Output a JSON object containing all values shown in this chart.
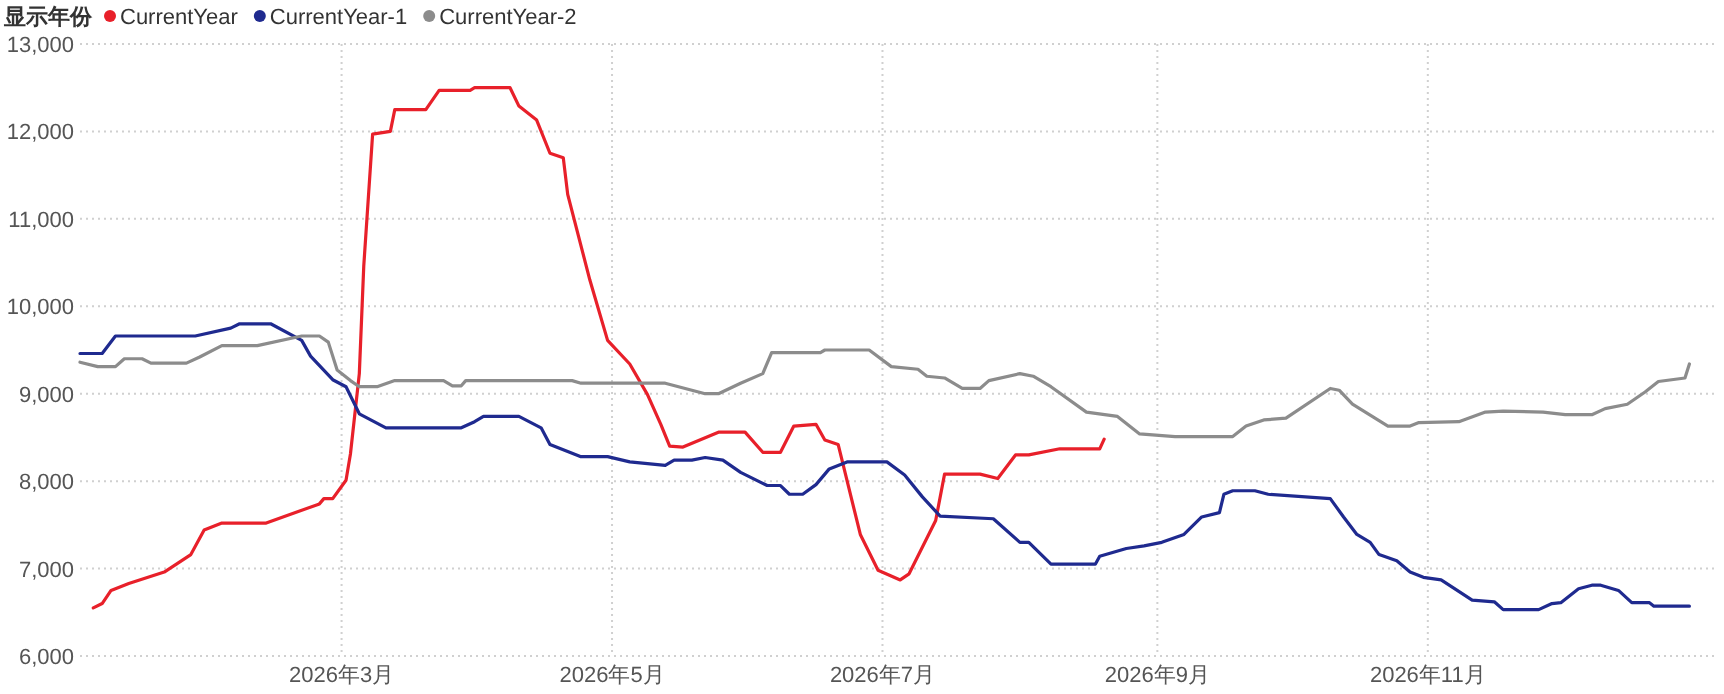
{
  "chart_data": {
    "type": "line",
    "legend_title": "显示年份",
    "legend": "top left",
    "grid": true,
    "xlim": [
      "2026-01-01",
      "2027-01-05"
    ],
    "xticks": [
      {
        "value": "2026-03-01",
        "label": "2026年3月"
      },
      {
        "value": "2026-05-01",
        "label": "2026年5月"
      },
      {
        "value": "2026-07-01",
        "label": "2026年7月"
      },
      {
        "value": "2026-09-01",
        "label": "2026年9月"
      },
      {
        "value": "2026-11-01",
        "label": "2026年11月"
      }
    ],
    "ylim": [
      6000,
      13000
    ],
    "yticks": [
      {
        "value": 6000,
        "label": "6,000"
      },
      {
        "value": 7000,
        "label": "7,000"
      },
      {
        "value": 8000,
        "label": "8,000"
      },
      {
        "value": 9000,
        "label": "9,000"
      },
      {
        "value": 10000,
        "label": "10,000"
      },
      {
        "value": 11000,
        "label": "11,000"
      },
      {
        "value": 12000,
        "label": "12,000"
      },
      {
        "value": 13000,
        "label": "13,000"
      }
    ],
    "series": [
      {
        "name": "CurrentYear",
        "color": "#e8202a",
        "x": [
          "2026-01-04",
          "2026-01-06",
          "2026-01-08",
          "2026-01-12",
          "2026-01-20",
          "2026-01-26",
          "2026-01-29",
          "2026-02-02",
          "2026-02-12",
          "2026-02-24",
          "2026-02-25",
          "2026-02-27",
          "2026-03-02",
          "2026-03-03",
          "2026-03-05",
          "2026-03-06",
          "2026-03-08",
          "2026-03-12",
          "2026-03-13",
          "2026-03-20",
          "2026-03-23",
          "2026-03-30",
          "2026-03-31",
          "2026-04-08",
          "2026-04-10",
          "2026-04-14",
          "2026-04-17",
          "2026-04-20",
          "2026-04-21",
          "2026-04-26",
          "2026-04-30",
          "2026-05-05",
          "2026-05-09",
          "2026-05-12",
          "2026-05-14",
          "2026-05-17",
          "2026-05-25",
          "2026-05-31",
          "2026-06-04",
          "2026-06-08",
          "2026-06-11",
          "2026-06-16",
          "2026-06-18",
          "2026-06-21",
          "2026-06-26",
          "2026-06-30",
          "2026-07-05",
          "2026-07-07",
          "2026-07-13",
          "2026-07-15",
          "2026-07-23",
          "2026-07-27",
          "2026-07-31",
          "2026-08-03",
          "2026-08-10",
          "2026-08-19",
          "2026-08-20"
        ],
        "values": [
          6550,
          6600,
          6750,
          6830,
          6960,
          7160,
          7440,
          7520,
          7520,
          7740,
          7800,
          7800,
          8010,
          8310,
          9230,
          10460,
          11970,
          12000,
          12250,
          12250,
          12470,
          12470,
          12500,
          12500,
          12290,
          12130,
          11750,
          11700,
          11280,
          10300,
          9610,
          9340,
          8990,
          8650,
          8400,
          8390,
          8560,
          8560,
          8330,
          8330,
          8630,
          8650,
          8470,
          8420,
          7390,
          6980,
          6870,
          6940,
          7550,
          8080,
          8080,
          8030,
          8300,
          8300,
          8370,
          8370,
          8480
        ]
      },
      {
        "name": "CurrentYear-1",
        "color": "#1f2a8f",
        "x": [
          "2026-01-01",
          "2026-01-06",
          "2026-01-09",
          "2026-01-27",
          "2026-02-04",
          "2026-02-06",
          "2026-02-13",
          "2026-02-20",
          "2026-02-22",
          "2026-02-27",
          "2026-03-02",
          "2026-03-05",
          "2026-03-11",
          "2026-03-28",
          "2026-03-31",
          "2026-04-02",
          "2026-04-10",
          "2026-04-15",
          "2026-04-17",
          "2026-04-24",
          "2026-04-30",
          "2026-05-05",
          "2026-05-13",
          "2026-05-15",
          "2026-05-19",
          "2026-05-22",
          "2026-05-26",
          "2026-05-30",
          "2026-06-05",
          "2026-06-08",
          "2026-06-10",
          "2026-06-13",
          "2026-06-16",
          "2026-06-19",
          "2026-06-23",
          "2026-07-02",
          "2026-07-06",
          "2026-07-10",
          "2026-07-14",
          "2026-07-26",
          "2026-08-01",
          "2026-08-03",
          "2026-08-08",
          "2026-08-18",
          "2026-08-19",
          "2026-08-25",
          "2026-08-29",
          "2026-09-02",
          "2026-09-07",
          "2026-09-11",
          "2026-09-15",
          "2026-09-16",
          "2026-09-18",
          "2026-09-23",
          "2026-09-26",
          "2026-10-10",
          "2026-10-13",
          "2026-10-16",
          "2026-10-19",
          "2026-10-21",
          "2026-10-25",
          "2026-10-28",
          "2026-10-31",
          "2026-11-04",
          "2026-11-11",
          "2026-11-16",
          "2026-11-18",
          "2026-11-26",
          "2026-11-29",
          "2026-12-01",
          "2026-12-05",
          "2026-12-08",
          "2026-12-10",
          "2026-12-14",
          "2026-12-17",
          "2026-12-21",
          "2026-12-22",
          "2026-12-30"
        ],
        "values": [
          9460,
          9460,
          9660,
          9660,
          9750,
          9800,
          9800,
          9610,
          9430,
          9160,
          9080,
          8770,
          8610,
          8610,
          8680,
          8740,
          8740,
          8610,
          8420,
          8280,
          8280,
          8220,
          8180,
          8240,
          8240,
          8270,
          8240,
          8100,
          7950,
          7950,
          7850,
          7850,
          7960,
          8140,
          8220,
          8220,
          8070,
          7820,
          7600,
          7570,
          7300,
          7300,
          7050,
          7050,
          7140,
          7230,
          7260,
          7300,
          7390,
          7590,
          7640,
          7850,
          7890,
          7890,
          7850,
          7800,
          7590,
          7390,
          7300,
          7160,
          7090,
          6960,
          6900,
          6870,
          6640,
          6620,
          6530,
          6530,
          6600,
          6610,
          6770,
          6810,
          6810,
          6750,
          6610,
          6610,
          6570,
          6570
        ]
      },
      {
        "name": "CurrentYear-2",
        "color": "#8c8c8c",
        "x": [
          "2026-01-01",
          "2026-01-05",
          "2026-01-09",
          "2026-01-11",
          "2026-01-15",
          "2026-01-17",
          "2026-01-25",
          "2026-01-28",
          "2026-02-02",
          "2026-02-10",
          "2026-02-20",
          "2026-02-24",
          "2026-02-26",
          "2026-02-28",
          "2026-03-03",
          "2026-03-05",
          "2026-03-09",
          "2026-03-13",
          "2026-03-24",
          "2026-03-26",
          "2026-03-28",
          "2026-03-29",
          "2026-04-22",
          "2026-04-24",
          "2026-05-13",
          "2026-05-22",
          "2026-05-25",
          "2026-05-30",
          "2026-06-04",
          "2026-06-06",
          "2026-06-17",
          "2026-06-18",
          "2026-06-28",
          "2026-07-03",
          "2026-07-09",
          "2026-07-11",
          "2026-07-15",
          "2026-07-19",
          "2026-07-23",
          "2026-07-25",
          "2026-08-01",
          "2026-08-04",
          "2026-08-08",
          "2026-08-16",
          "2026-08-23",
          "2026-08-28",
          "2026-09-05",
          "2026-09-18",
          "2026-09-21",
          "2026-09-25",
          "2026-09-30",
          "2026-10-10",
          "2026-10-12",
          "2026-10-15",
          "2026-10-23",
          "2026-10-28",
          "2026-10-30",
          "2026-11-08",
          "2026-11-14",
          "2026-11-18",
          "2026-11-27",
          "2026-12-02",
          "2026-12-08",
          "2026-12-11",
          "2026-12-16",
          "2026-12-20",
          "2026-12-23",
          "2026-12-29",
          "2026-12-30"
        ],
        "values": [
          9360,
          9310,
          9310,
          9400,
          9400,
          9350,
          9350,
          9420,
          9550,
          9550,
          9660,
          9660,
          9590,
          9270,
          9150,
          9080,
          9080,
          9150,
          9150,
          9090,
          9090,
          9150,
          9150,
          9120,
          9120,
          9000,
          9000,
          9120,
          9230,
          9470,
          9470,
          9500,
          9500,
          9310,
          9280,
          9200,
          9180,
          9060,
          9060,
          9150,
          9230,
          9200,
          9080,
          8790,
          8740,
          8540,
          8510,
          8510,
          8630,
          8700,
          8720,
          9060,
          9040,
          8880,
          8630,
          8630,
          8670,
          8680,
          8790,
          8800,
          8790,
          8760,
          8760,
          8830,
          8880,
          9020,
          9140,
          9180,
          9340
        ]
      }
    ]
  }
}
